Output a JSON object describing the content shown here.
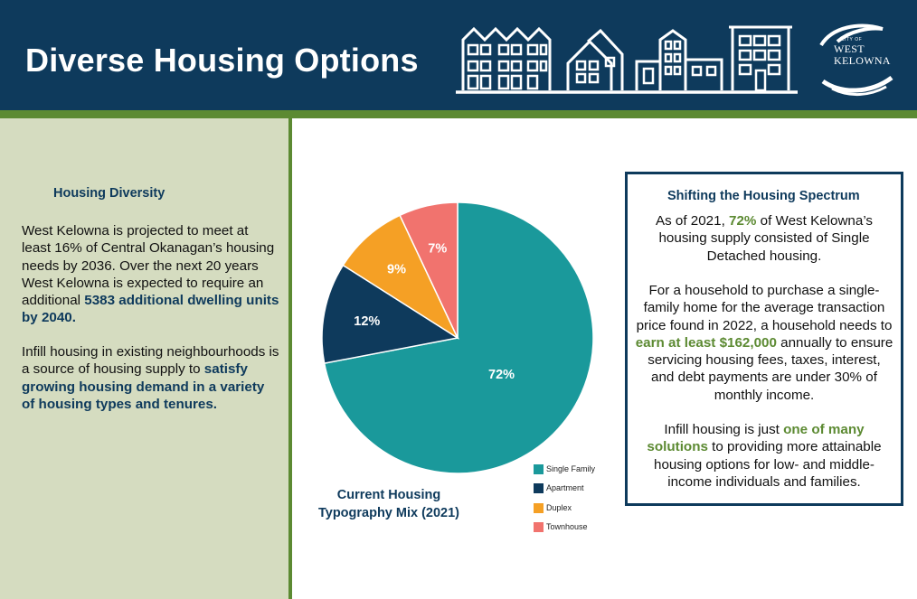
{
  "header": {
    "title": "Diverse Housing Options",
    "logo": {
      "line1": "CITY OF",
      "line2": "WEST",
      "line3": "KELOWNA"
    }
  },
  "colors": {
    "navy": "#0e3a5c",
    "green": "#5c8a32",
    "panel": "#d5dcc0",
    "teal": "#1a999b",
    "orange": "#f5a025",
    "salmon": "#f1736e"
  },
  "left": {
    "heading": "Housing Diversity",
    "p1_a": "West Kelowna is projected to meet at least 16% of Central Okanagan’s housing needs by 2036. Over the next 20 years West Kelowna is expected to require an additional ",
    "p1_b": "5383 additional dwelling units by 2040.",
    "p2_a": "Infill housing in existing neighbourhoods is a source of housing supply to ",
    "p2_b": "satisfy growing housing demand in a variety of housing types and tenures."
  },
  "chart_data": {
    "type": "pie",
    "title": "Current Housing Typography Mix (2021)",
    "categories": [
      "Single Family",
      "Apartment",
      "Duplex",
      "Townhouse"
    ],
    "values": [
      72,
      12,
      9,
      7
    ],
    "labels": [
      "72%",
      "12%",
      "9%",
      "7%"
    ],
    "colors": [
      "#1a999b",
      "#0e3a5c",
      "#f5a025",
      "#f1736e"
    ],
    "legend": "bottom-right"
  },
  "box": {
    "heading": "Shifting the Housing Spectrum",
    "p1_a": "As of 2021, ",
    "p1_b": "72%",
    "p1_c": " of West Kelowna’s housing supply consisted of Single Detached housing.",
    "p2_a": "For a household to purchase a single-family home for the average transaction price found in 2022, a household needs to ",
    "p2_b": "earn at least $162,000",
    "p2_c": " annually to ensure servicing housing fees, taxes, interest, and debt payments are under 30% of monthly income.",
    "p3_a": "Infill housing is just ",
    "p3_b": "one of many solutions",
    "p3_c": " to providing more attainable housing options for low- and middle-income individuals and families."
  }
}
